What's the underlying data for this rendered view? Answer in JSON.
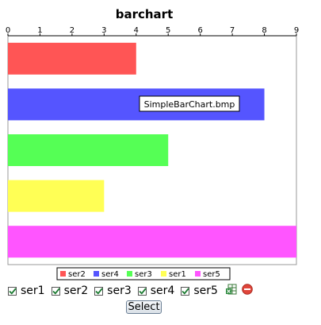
{
  "chart_data": {
    "type": "bar",
    "orientation": "horizontal",
    "title": "barchart",
    "xlim": [
      0,
      9
    ],
    "xticks": [
      "0",
      "1",
      "2",
      "3",
      "4",
      "5",
      "6",
      "7",
      "8",
      "9"
    ],
    "grid": false,
    "legend_position": "bottom",
    "series": [
      {
        "name": "ser2",
        "value": 4,
        "color": "#ff5555"
      },
      {
        "name": "ser4",
        "value": 8,
        "color": "#5555ff"
      },
      {
        "name": "ser3",
        "value": 5,
        "color": "#55ff55"
      },
      {
        "name": "ser1",
        "value": 3,
        "color": "#ffff55"
      },
      {
        "name": "ser5",
        "value": 9,
        "color": "#ff55ff"
      }
    ]
  },
  "tooltip": {
    "text": "SimpleBarChart.bmp"
  },
  "controls": {
    "checkboxes": [
      {
        "label": "ser1",
        "checked": true
      },
      {
        "label": "ser2",
        "checked": true
      },
      {
        "label": "ser3",
        "checked": true
      },
      {
        "label": "ser4",
        "checked": true
      },
      {
        "label": "ser5",
        "checked": true
      }
    ],
    "icons": [
      "spreadsheet-icon",
      "remove-icon"
    ],
    "select_label": "Select"
  }
}
